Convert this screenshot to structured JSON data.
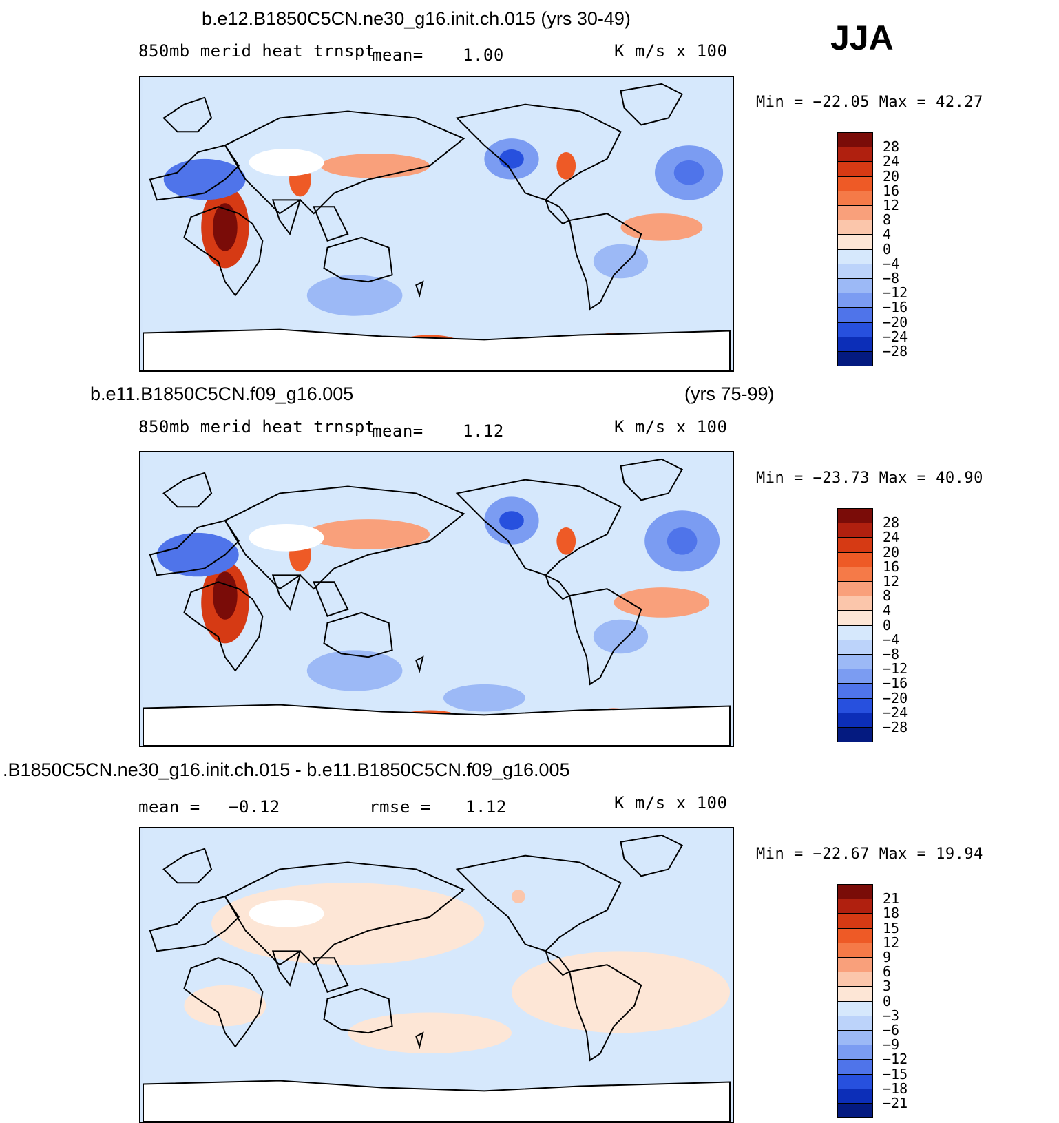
{
  "season": "JJA",
  "panels": [
    {
      "title": "b.e12.B1850C5CN.ne30_g16.init.ch.015 (yrs 30-49)",
      "title2": "",
      "left_label": "850mb merid heat trnspt",
      "mean_label": "mean=",
      "mean_value": "1.00",
      "rmse_label": "",
      "rmse_value": "",
      "units": "K m/s x 100",
      "minmax": "Min = −22.05 Max =  42.27",
      "legend": {
        "levels": [
          "28",
          "24",
          "20",
          "16",
          "12",
          "8",
          "4",
          "0",
          "−4",
          "−8",
          "−12",
          "−16",
          "−20",
          "−24",
          "−28"
        ],
        "colors": [
          "#7a0c08",
          "#b0200f",
          "#d63a14",
          "#ee5a26",
          "#f57a48",
          "#f9a07b",
          "#fbc6ab",
          "#fde6d6",
          "#d6e8fc",
          "#bcd3fa",
          "#9cb9f6",
          "#7b9cf2",
          "#4f74ea",
          "#2750de",
          "#0c2eb8",
          "#041a80"
        ]
      }
    },
    {
      "title": "b.e11.B1850C5CN.f09_g16.005",
      "title2": "(yrs 75-99)",
      "left_label": "850mb merid heat trnspt",
      "mean_label": "mean=",
      "mean_value": "1.12",
      "rmse_label": "",
      "rmse_value": "",
      "units": "K m/s x 100",
      "minmax": "Min = −23.73 Max =  40.90",
      "legend": {
        "levels": [
          "28",
          "24",
          "20",
          "16",
          "12",
          "8",
          "4",
          "0",
          "−4",
          "−8",
          "−12",
          "−16",
          "−20",
          "−24",
          "−28"
        ],
        "colors": [
          "#7a0c08",
          "#b0200f",
          "#d63a14",
          "#ee5a26",
          "#f57a48",
          "#f9a07b",
          "#fbc6ab",
          "#fde6d6",
          "#d6e8fc",
          "#bcd3fa",
          "#9cb9f6",
          "#7b9cf2",
          "#4f74ea",
          "#2750de",
          "#0c2eb8",
          "#041a80"
        ]
      }
    },
    {
      "title": ".B1850C5CN.ne30_g16.init.ch.015 - b.e11.B1850C5CN.f09_g16.005",
      "title2": "",
      "left_label": "",
      "mean_label": "mean =",
      "mean_value": "−0.12",
      "rmse_label": "rmse =",
      "rmse_value": "1.12",
      "units": "K m/s x 100",
      "minmax": "Min = −22.67 Max =  19.94",
      "legend": {
        "levels": [
          "21",
          "18",
          "15",
          "12",
          "9",
          "6",
          "3",
          "0",
          "−3",
          "−6",
          "−9",
          "−12",
          "−15",
          "−18",
          "−21"
        ],
        "colors": [
          "#7a0c08",
          "#b0200f",
          "#d63a14",
          "#ee5a26",
          "#f57a48",
          "#f9a07b",
          "#fbc6ab",
          "#fde6d6",
          "#d6e8fc",
          "#bcd3fa",
          "#9cb9f6",
          "#7b9cf2",
          "#4f74ea",
          "#2750de",
          "#0c2eb8",
          "#041a80"
        ]
      }
    }
  ]
}
